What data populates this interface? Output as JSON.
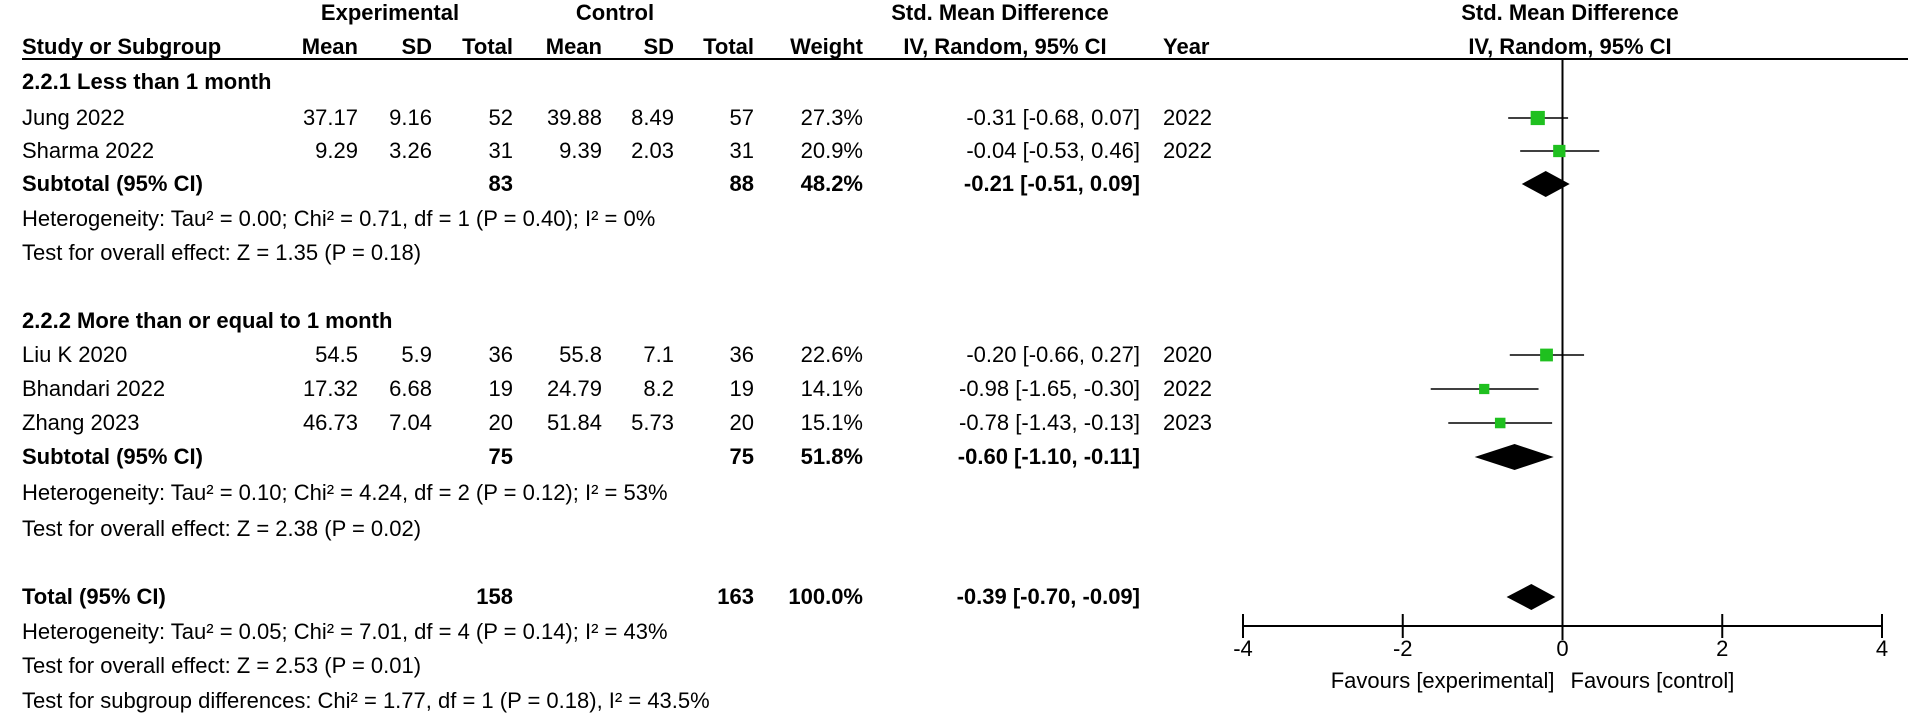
{
  "header": {
    "experimental": "Experimental",
    "control": "Control",
    "smd": "Std. Mean Difference",
    "study": "Study or Subgroup",
    "mean1": "Mean",
    "sd1": "SD",
    "total1": "Total",
    "mean2": "Mean",
    "sd2": "SD",
    "total2": "Total",
    "weight": "Weight",
    "method": "IV, Random, 95% CI",
    "year": "Year",
    "plot_title": "Std. Mean Difference",
    "plot_method": "IV, Random, 95% CI"
  },
  "groups": [
    {
      "title": "2.2.1 Less than 1 month",
      "studies": [
        {
          "name": "Jung 2022",
          "m1": "37.17",
          "sd1": "9.16",
          "n1": "52",
          "m2": "39.88",
          "sd2": "8.49",
          "n2": "57",
          "w": "27.3%",
          "ci": "-0.31 [-0.68, 0.07]",
          "year": "2022"
        },
        {
          "name": "Sharma 2022",
          "m1": "9.29",
          "sd1": "3.26",
          "n1": "31",
          "m2": "9.39",
          "sd2": "2.03",
          "n2": "31",
          "w": "20.9%",
          "ci": "-0.04 [-0.53, 0.46]",
          "year": "2022"
        }
      ],
      "subtotal": {
        "label": "Subtotal (95% CI)",
        "n1": "83",
        "n2": "88",
        "w": "48.2%",
        "ci": "-0.21 [-0.51, 0.09]"
      },
      "heterogeneity": "Heterogeneity: Tau² = 0.00; Chi² = 0.71, df = 1 (P = 0.40); I² = 0%",
      "overall": "Test for overall effect: Z = 1.35 (P = 0.18)"
    },
    {
      "title": "2.2.2 More than or equal to 1 month",
      "studies": [
        {
          "name": "Liu K 2020",
          "m1": "54.5",
          "sd1": "5.9",
          "n1": "36",
          "m2": "55.8",
          "sd2": "7.1",
          "n2": "36",
          "w": "22.6%",
          "ci": "-0.20 [-0.66, 0.27]",
          "year": "2020"
        },
        {
          "name": "Bhandari 2022",
          "m1": "17.32",
          "sd1": "6.68",
          "n1": "19",
          "m2": "24.79",
          "sd2": "8.2",
          "n2": "19",
          "w": "14.1%",
          "ci": "-0.98 [-1.65, -0.30]",
          "year": "2022"
        },
        {
          "name": "Zhang 2023",
          "m1": "46.73",
          "sd1": "7.04",
          "n1": "20",
          "m2": "51.84",
          "sd2": "5.73",
          "n2": "20",
          "w": "15.1%",
          "ci": "-0.78 [-1.43, -0.13]",
          "year": "2023"
        }
      ],
      "subtotal": {
        "label": "Subtotal (95% CI)",
        "n1": "75",
        "n2": "75",
        "w": "51.8%",
        "ci": "-0.60 [-1.10, -0.11]"
      },
      "heterogeneity": "Heterogeneity: Tau² = 0.10; Chi² = 4.24, df = 2 (P = 0.12); I² = 53%",
      "overall": "Test for overall effect: Z = 2.38 (P = 0.02)"
    }
  ],
  "total": {
    "label": "Total (95% CI)",
    "n1": "158",
    "n2": "163",
    "w": "100.0%",
    "ci": "-0.39 [-0.70, -0.09]"
  },
  "footer": {
    "heterogeneity": "Heterogeneity: Tau² = 0.05; Chi² = 7.01, df = 4 (P = 0.14); I² = 43%",
    "overall": "Test for overall effect: Z = 2.53 (P = 0.01)",
    "subgroup": "Test for subgroup differences: Chi² = 1.77, df = 1 (P = 0.18), I² = 43.5%"
  },
  "chart_data": {
    "type": "forest",
    "title": "Std. Mean Difference",
    "subtitle": "IV, Random, 95% CI",
    "xlim": [
      -4,
      4
    ],
    "xticks": [
      -4,
      -2,
      0,
      2,
      4
    ],
    "xtick_labels": [
      "-4",
      "-2",
      "0",
      "2",
      "4"
    ],
    "favours_left": "Favours [experimental]",
    "favours_right": "Favours [control]",
    "colors": {
      "study": "#1fc01f",
      "diamond": "#000000",
      "axis": "#000000"
    },
    "studies": [
      {
        "name": "Jung 2022",
        "est": -0.31,
        "lo": -0.68,
        "hi": 0.07,
        "weight": 27.3
      },
      {
        "name": "Sharma 2022",
        "est": -0.04,
        "lo": -0.53,
        "hi": 0.46,
        "weight": 20.9
      },
      {
        "name": "Liu K 2020",
        "est": -0.2,
        "lo": -0.66,
        "hi": 0.27,
        "weight": 22.6
      },
      {
        "name": "Bhandari 2022",
        "est": -0.98,
        "lo": -1.65,
        "hi": -0.3,
        "weight": 14.1
      },
      {
        "name": "Zhang 2023",
        "est": -0.78,
        "lo": -1.43,
        "hi": -0.13,
        "weight": 15.1
      }
    ],
    "diamonds": [
      {
        "name": "Subtotal 2.2.1",
        "est": -0.21,
        "lo": -0.51,
        "hi": 0.09
      },
      {
        "name": "Subtotal 2.2.2",
        "est": -0.6,
        "lo": -1.1,
        "hi": -0.11
      },
      {
        "name": "Total",
        "est": -0.39,
        "lo": -0.7,
        "hi": -0.09
      }
    ]
  }
}
